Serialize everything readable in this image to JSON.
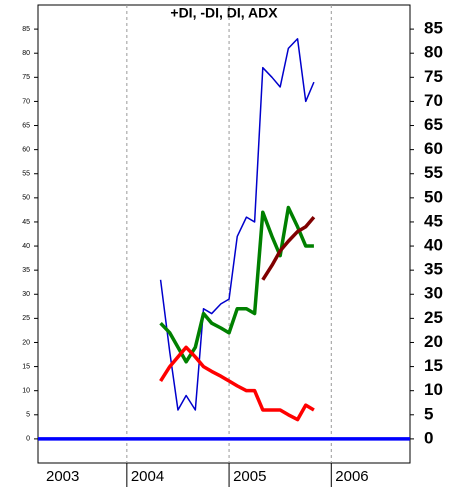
{
  "chart_data": {
    "type": "line",
    "title": "+DI, -DI, DI, ADX",
    "x": [
      2004.33,
      2004.42,
      2004.5,
      2004.58,
      2004.67,
      2004.75,
      2004.83,
      2004.92,
      2005.0,
      2005.08,
      2005.17,
      2005.25,
      2005.33,
      2005.42,
      2005.5,
      2005.58,
      2005.67,
      2005.75,
      2005.83
    ],
    "series": [
      {
        "color": "#0000cc",
        "line_width": 1.5,
        "values": [
          33,
          18,
          6,
          9,
          6,
          27,
          26,
          28,
          29,
          42,
          46,
          45,
          77,
          75,
          73,
          81,
          83,
          70,
          74
        ]
      },
      {
        "color": "#008000",
        "line_width": 3.5,
        "values": [
          24,
          22,
          19,
          16,
          19,
          26,
          24,
          23,
          22,
          27,
          27,
          26,
          47,
          42,
          38,
          48,
          44,
          40,
          40
        ]
      },
      {
        "color": "#ff0000",
        "line_width": 3.5,
        "values": [
          12,
          15,
          17,
          19,
          17,
          15,
          14,
          13,
          12,
          11,
          10,
          10,
          6,
          6,
          6,
          5,
          4,
          7,
          6
        ]
      },
      {
        "color": "#800000",
        "line_width": 3.5,
        "values": [
          null,
          null,
          null,
          null,
          null,
          null,
          null,
          null,
          null,
          null,
          null,
          null,
          33,
          36,
          39,
          41,
          43,
          44,
          46
        ]
      }
    ],
    "hline": {
      "value": 0,
      "color": "#0000ff"
    },
    "xlim": [
      2003.17,
      2006.77
    ],
    "xticks": [
      2003,
      2004,
      2005,
      2006
    ],
    "ylim": [
      -5,
      90
    ],
    "yticks": [
      0,
      5,
      10,
      15,
      20,
      25,
      30,
      35,
      40,
      45,
      50,
      55,
      60,
      65,
      70,
      75,
      80,
      85
    ],
    "grid_x": true
  }
}
